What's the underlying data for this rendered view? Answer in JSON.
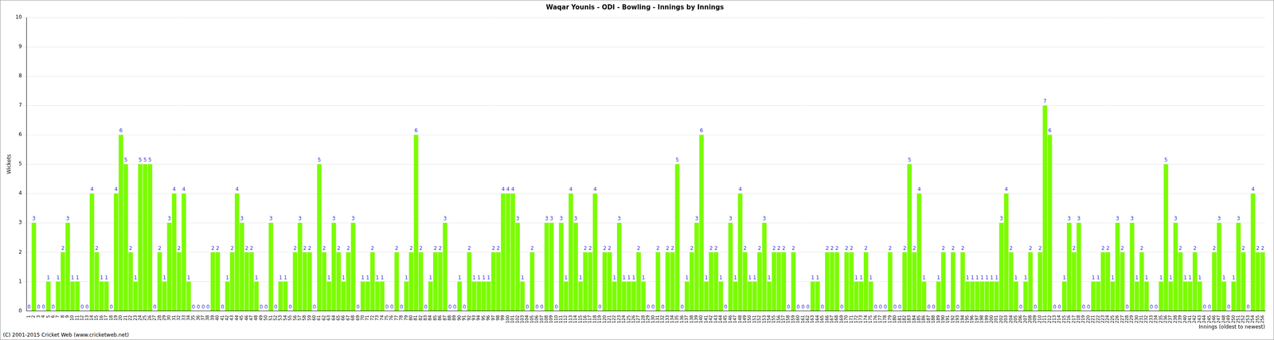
{
  "chart_data": {
    "type": "bar",
    "title": "Waqar Younis - ODI - Bowling - Innings by Innings",
    "x_label": "Innings (oldest to newest)",
    "y_label": "Wickets",
    "annotations": [
      "(C) 2001-2015 Cricket Web (www.cricketweb.net)"
    ],
    "categories": [
      "1",
      "2",
      "3",
      "4",
      "5",
      "6",
      "7",
      "8",
      "9",
      "10",
      "11",
      "12",
      "13",
      "14",
      "15",
      "16",
      "17",
      "18",
      "19",
      "20",
      "21",
      "22",
      "23",
      "24",
      "25",
      "26",
      "27",
      "28",
      "29",
      "30",
      "31",
      "32",
      "33",
      "34",
      "35",
      "36",
      "37",
      "38",
      "39",
      "40",
      "41",
      "42",
      "43",
      "44",
      "45",
      "46",
      "47",
      "48",
      "49",
      "50",
      "51",
      "52",
      "53",
      "54",
      "55",
      "56",
      "57",
      "58",
      "59",
      "60",
      "61",
      "62",
      "63",
      "64",
      "65",
      "66",
      "67",
      "68",
      "69",
      "70",
      "71",
      "72",
      "73",
      "74",
      "75",
      "76",
      "77",
      "78",
      "79",
      "80",
      "81",
      "82",
      "83",
      "84",
      "85",
      "86",
      "87",
      "88",
      "89",
      "90",
      "91",
      "92",
      "93",
      "94",
      "95",
      "96",
      "97",
      "98",
      "99",
      "100",
      "101",
      "102",
      "103",
      "104",
      "105",
      "106",
      "107",
      "108",
      "109",
      "110",
      "111",
      "112",
      "113",
      "114",
      "115",
      "116",
      "117",
      "118",
      "119",
      "120",
      "121",
      "122",
      "123",
      "124",
      "125",
      "126",
      "127",
      "128",
      "129",
      "130",
      "131",
      "132",
      "133",
      "134",
      "135",
      "136",
      "137",
      "138",
      "139",
      "140",
      "141",
      "142",
      "143",
      "144",
      "145",
      "146",
      "147",
      "148",
      "149",
      "150",
      "151",
      "152",
      "153",
      "154",
      "155",
      "156",
      "157",
      "158",
      "159",
      "160",
      "161",
      "162",
      "163",
      "164",
      "165",
      "166",
      "167",
      "168",
      "169",
      "170",
      "171",
      "172",
      "173",
      "174",
      "175",
      "176",
      "177",
      "178",
      "179",
      "180",
      "181",
      "182",
      "183",
      "184",
      "185",
      "186",
      "187",
      "188",
      "189",
      "190",
      "191",
      "192",
      "193",
      "194",
      "195",
      "196",
      "197",
      "198",
      "199",
      "200",
      "201",
      "202",
      "203",
      "204",
      "205",
      "206",
      "207",
      "208",
      "209",
      "210",
      "211",
      "212",
      "213",
      "214",
      "215",
      "216",
      "217",
      "218",
      "219",
      "220",
      "221",
      "222",
      "223",
      "224",
      "225",
      "226",
      "227",
      "228",
      "229",
      "230",
      "231",
      "232",
      "233",
      "234",
      "235",
      "236",
      "237",
      "238",
      "239",
      "240",
      "241",
      "242",
      "243",
      "244",
      "245",
      "246",
      "247",
      "248",
      "249",
      "250",
      "251",
      "252",
      "253",
      "254",
      "255",
      "256"
    ],
    "values": [
      0,
      3,
      0,
      0,
      1,
      0,
      1,
      2,
      3,
      1,
      1,
      0,
      0,
      4,
      2,
      1,
      1,
      0,
      4,
      6,
      5,
      2,
      1,
      5,
      5,
      5,
      0,
      2,
      1,
      3,
      4,
      2,
      4,
      1,
      0,
      0,
      0,
      0,
      2,
      2,
      0,
      1,
      2,
      4,
      3,
      2,
      2,
      1,
      0,
      0,
      3,
      0,
      1,
      1,
      0,
      2,
      3,
      2,
      2,
      0,
      5,
      2,
      1,
      3,
      2,
      1,
      2,
      3,
      0,
      1,
      1,
      2,
      1,
      1,
      0,
      0,
      2,
      0,
      1,
      2,
      6,
      2,
      0,
      1,
      2,
      2,
      3,
      0,
      0,
      1,
      0,
      2,
      1,
      1,
      1,
      1,
      2,
      2,
      4,
      4,
      4,
      3,
      1,
      0,
      2,
      0,
      0,
      3,
      3,
      0,
      3,
      1,
      4,
      3,
      1,
      2,
      2,
      4,
      0,
      2,
      2,
      1,
      3,
      1,
      1,
      1,
      2,
      1,
      0,
      0,
      2,
      0,
      2,
      2,
      5,
      0,
      1,
      2,
      3,
      6,
      1,
      2,
      2,
      1,
      0,
      3,
      1,
      4,
      2,
      1,
      1,
      2,
      3,
      1,
      2,
      2,
      2,
      0,
      2,
      0,
      0,
      0,
      1,
      1,
      0,
      2,
      2,
      2,
      0,
      2,
      2,
      1,
      1,
      2,
      1,
      0,
      0,
      0,
      2,
      0,
      0,
      2,
      5,
      2,
      4,
      1,
      0,
      0,
      1,
      2,
      0,
      2,
      0,
      2,
      1,
      1,
      1,
      1,
      1,
      1,
      1,
      3,
      4,
      2,
      1,
      0,
      1,
      2,
      0,
      2,
      7,
      6,
      0,
      0,
      1,
      3,
      2,
      3,
      0,
      0,
      1,
      1,
      2,
      2,
      1,
      3,
      2,
      0,
      3,
      1,
      2,
      1,
      0,
      0,
      1,
      5,
      1,
      3,
      2,
      1,
      1,
      2,
      1,
      0,
      0,
      2,
      3,
      1,
      0,
      1,
      3,
      2,
      0,
      4,
      2,
      2
    ],
    "color": "#7cfc00",
    "ylim": [
      0,
      10
    ],
    "yticks": [
      0,
      1,
      2,
      3,
      4,
      5,
      6,
      7,
      8,
      9,
      10
    ],
    "grid": true,
    "data_labels": true
  }
}
